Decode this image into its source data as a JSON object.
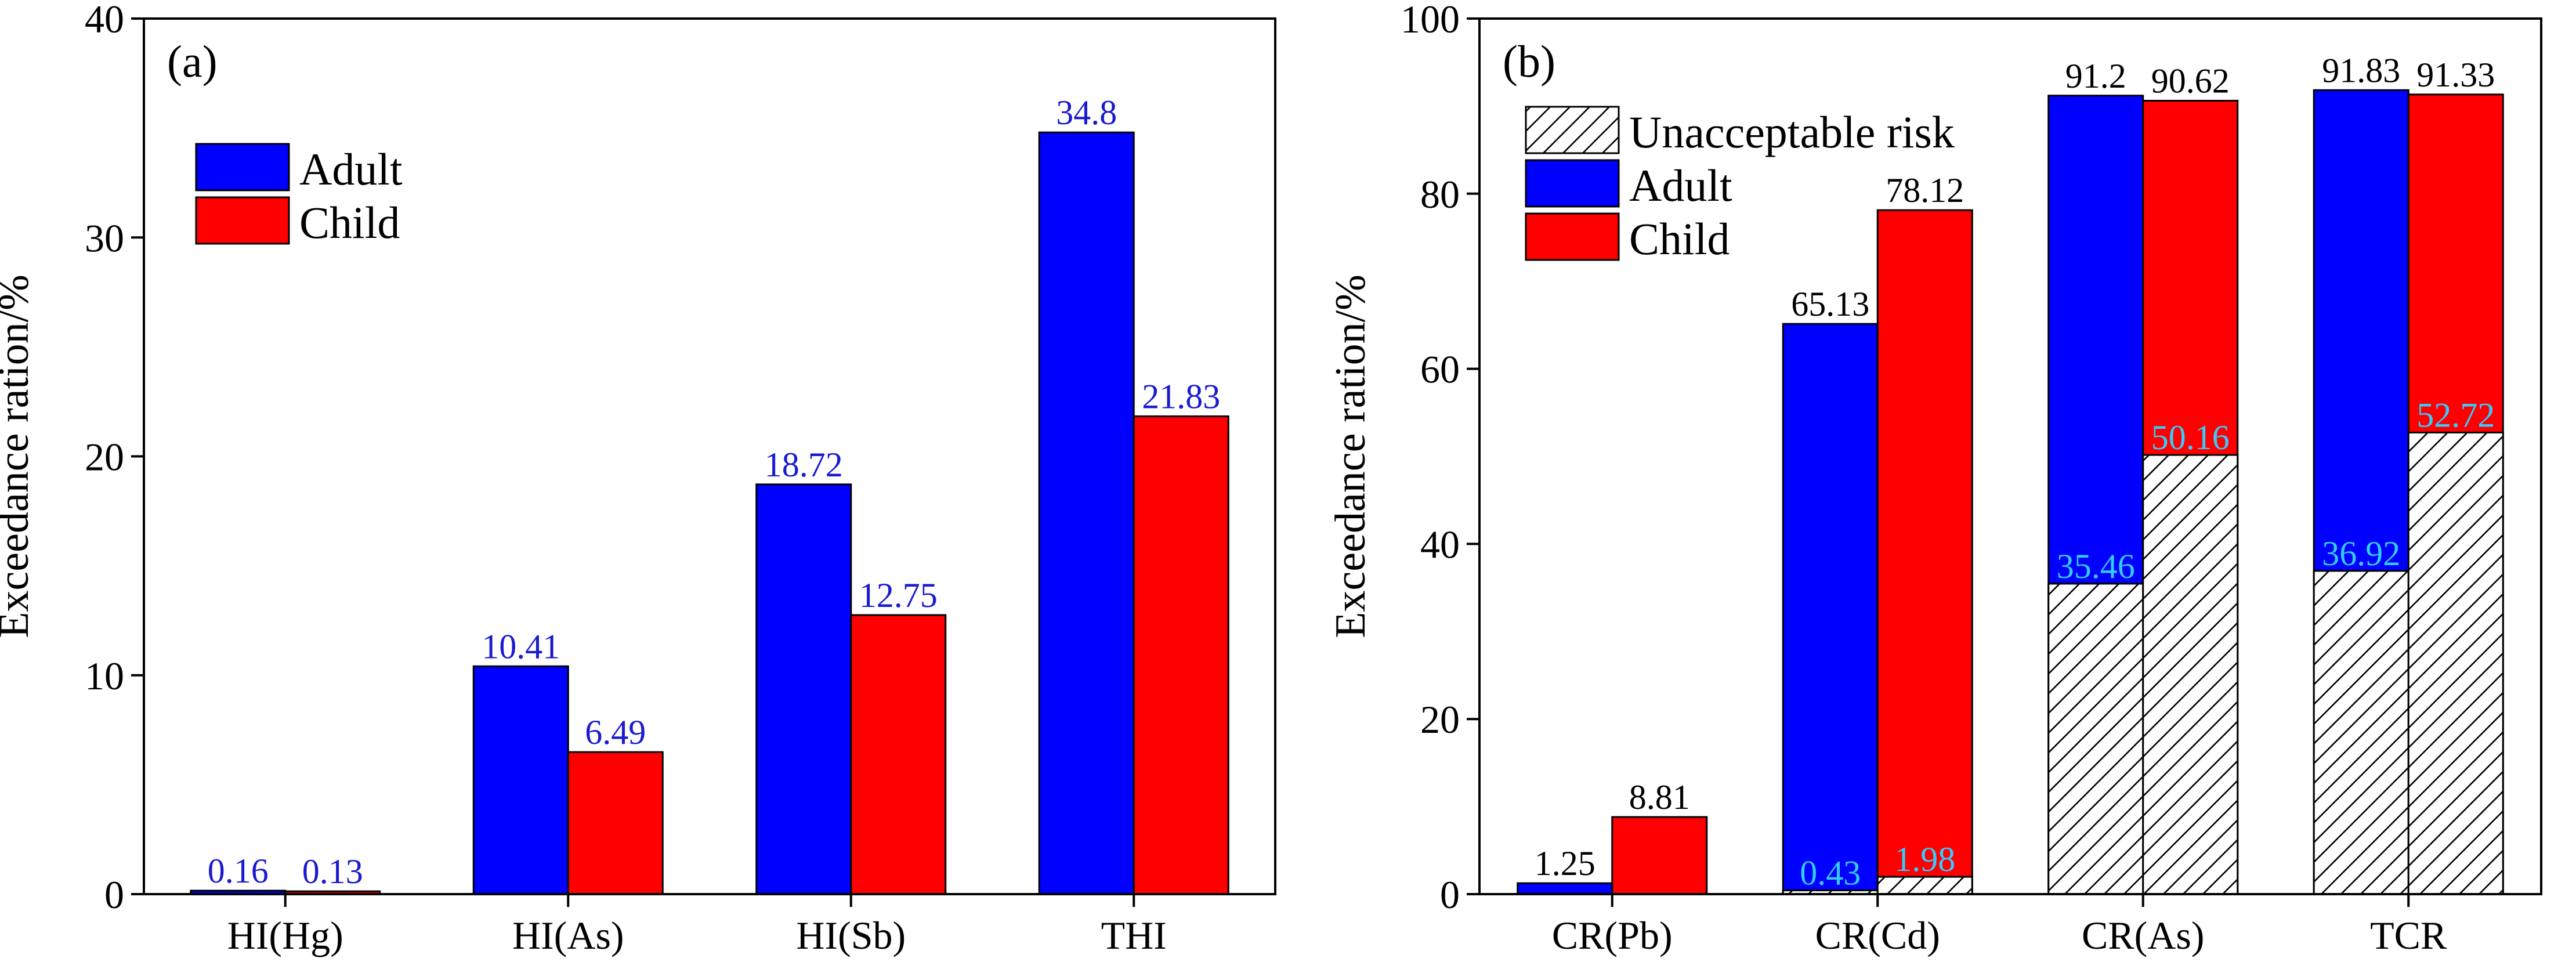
{
  "chart_data": [
    {
      "panel": "(a)",
      "type": "bar",
      "ylabel": "Exceedance ration/%",
      "ylim": [
        0,
        40
      ],
      "yticks": [
        0,
        10,
        20,
        30,
        40
      ],
      "categories": [
        "HI(Hg)",
        "HI(As)",
        "HI(Sb)",
        "THI"
      ],
      "legend": {
        "position": "top-left"
      },
      "series": [
        {
          "name": "Adult",
          "color": "#0000ff",
          "values": [
            0.16,
            10.41,
            18.72,
            34.8
          ],
          "labels": [
            "0.16",
            "10.41",
            "18.72",
            "34.8"
          ]
        },
        {
          "name": "Child",
          "color": "#ff0000",
          "values": [
            0.13,
            6.49,
            12.75,
            21.83
          ],
          "labels": [
            "0.13",
            "6.49",
            "12.75",
            "21.83"
          ]
        }
      ],
      "label_color": "#1a1ad0"
    },
    {
      "panel": "(b)",
      "type": "bar",
      "ylabel": "Exceedance ration/%",
      "ylim": [
        0,
        100
      ],
      "yticks": [
        0,
        20,
        40,
        60,
        80,
        100
      ],
      "categories": [
        "CR(Pb)",
        "CR(Cd)",
        "CR(As)",
        "TCR"
      ],
      "legend": {
        "position": "top-left"
      },
      "hatch_legend": "Unacceptable risk",
      "series": [
        {
          "name": "Adult",
          "color": "#0000ff",
          "values": [
            1.25,
            65.13,
            91.2,
            91.83
          ],
          "labels": [
            "1.25",
            "65.13",
            "91.2",
            "91.83"
          ]
        },
        {
          "name": "Child",
          "color": "#ff0000",
          "values": [
            8.81,
            78.12,
            90.62,
            91.33
          ],
          "labels": [
            "8.81",
            "78.12",
            "90.62",
            "91.33"
          ]
        }
      ],
      "unacceptable_risk": [
        {
          "series": "Adult",
          "values": [
            null,
            0.43,
            35.46,
            36.92
          ],
          "labels": [
            null,
            "0.43",
            "35.46",
            "36.92"
          ]
        },
        {
          "series": "Child",
          "values": [
            null,
            1.98,
            50.16,
            52.72
          ],
          "labels": [
            null,
            "1.98",
            "50.16",
            "52.72"
          ]
        }
      ],
      "label_color": "#000000",
      "risk_label_color": "#33ccff"
    }
  ]
}
